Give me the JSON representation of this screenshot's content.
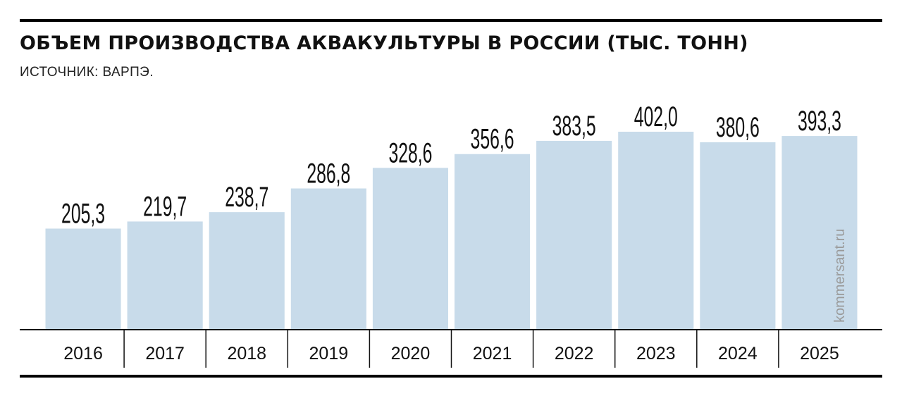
{
  "header": {
    "title": "ОБЪЕМ ПРОИЗВОДСТВА АКВАКУЛЬТУРЫ В РОССИИ (ТЫС. ТОНН)",
    "source": "ИСТОЧНИК: ВАРПЭ."
  },
  "watermark": "kommersant.ru",
  "colors": {
    "bar": "#c8dbea",
    "text": "#111111",
    "rule": "#000000"
  },
  "chart_data": {
    "type": "bar",
    "title": "ОБЪЕМ ПРОИЗВОДСТВА АКВАКУЛЬТУРЫ В РОССИИ (ТЫС. ТОНН)",
    "categories": [
      "2016",
      "2017",
      "2018",
      "2019",
      "2020",
      "2021",
      "2022",
      "2023",
      "2024",
      "2025"
    ],
    "values": [
      205.3,
      219.7,
      238.7,
      286.8,
      328.6,
      356.6,
      383.5,
      402.0,
      380.6,
      393.3
    ],
    "value_labels": [
      "205,3",
      "219,7",
      "238,7",
      "286,8",
      "328,6",
      "356,6",
      "383,5",
      "402,0",
      "380,6",
      "393,3"
    ],
    "xlabel": "",
    "ylabel": "",
    "ylim": [
      0,
      402.0
    ],
    "grid": false,
    "legend": "none"
  }
}
